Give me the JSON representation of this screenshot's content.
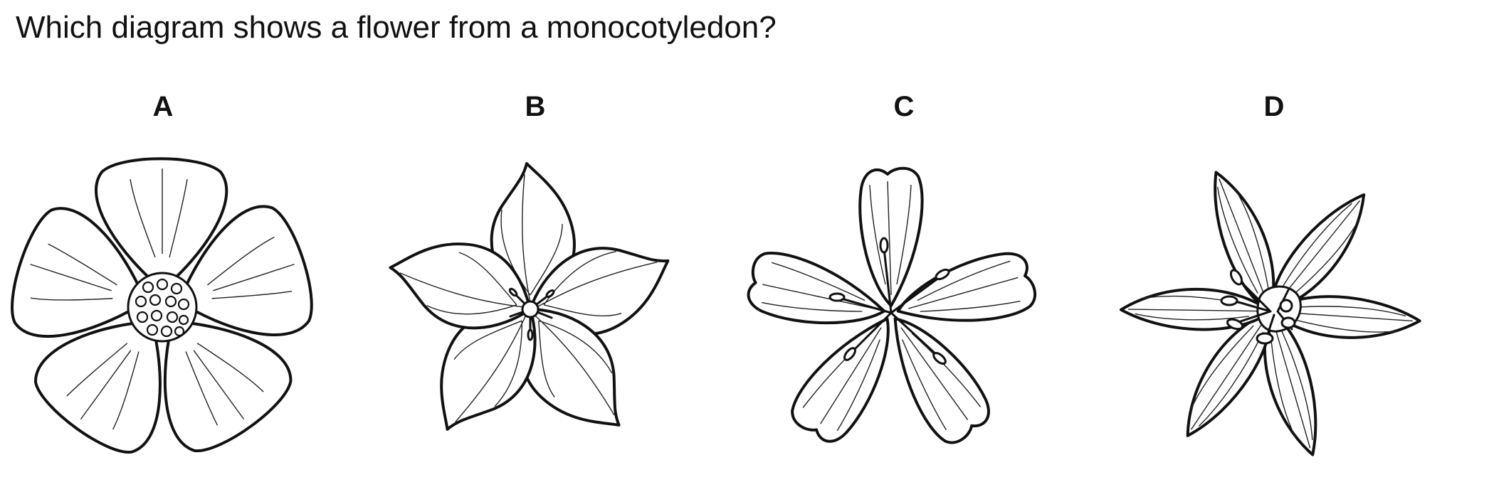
{
  "question": "Which diagram shows a flower from a monocotyledon?",
  "options": [
    {
      "label": "A",
      "petals": 5
    },
    {
      "label": "B",
      "petals": 5
    },
    {
      "label": "C",
      "petals": 5
    },
    {
      "label": "D",
      "petals": 6
    }
  ]
}
